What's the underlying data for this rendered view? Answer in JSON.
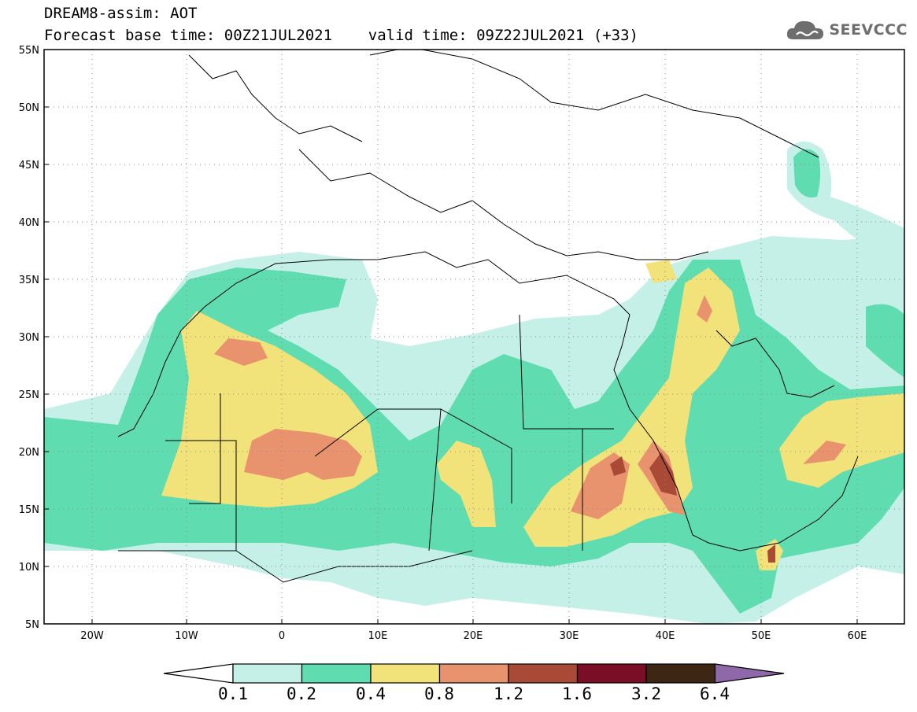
{
  "header": {
    "line1": "DREAM8-assim: AOT",
    "line2": "Forecast base time: 00Z21JUL2021    valid time: 09Z22JUL2021 (+33)"
  },
  "logo": {
    "text": "SEEVCCC",
    "icon": "cloud-icon",
    "color": "#6e6e6e"
  },
  "map": {
    "lat_labels": [
      "55N",
      "50N",
      "45N",
      "40N",
      "35N",
      "30N",
      "25N",
      "20N",
      "15N",
      "10N",
      "5N"
    ],
    "lon_labels": [
      "20W",
      "10W",
      "0",
      "10E",
      "20E",
      "30E",
      "40E",
      "50E",
      "60E"
    ],
    "lon_range": [
      -25,
      65
    ],
    "lat_range": [
      5,
      55
    ],
    "grid": "dotted"
  },
  "colorbar": {
    "labels": [
      "0.1",
      "0.2",
      "0.4",
      "0.8",
      "1.2",
      "1.6",
      "3.2",
      "6.4"
    ],
    "colors": [
      "#ffffff",
      "#c5f0e8",
      "#5fdcb0",
      "#f2e27a",
      "#e8936e",
      "#a84a36",
      "#7a0e26",
      "#3e2614",
      "#8f68aa"
    ]
  },
  "aot_colors": {
    "c01": "#c5f0e8",
    "c02": "#5fdcb0",
    "c04": "#f2e27a",
    "c08": "#e8936e",
    "c12": "#a84a36",
    "c16": "#7a0e26"
  }
}
